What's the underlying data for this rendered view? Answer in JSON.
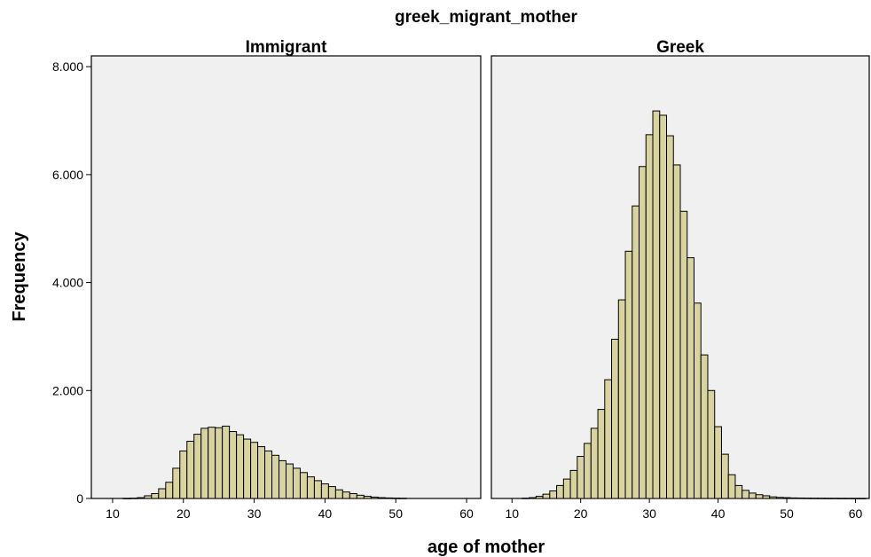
{
  "chart_data": {
    "type": "bar",
    "title": "greek_migrant_mother",
    "xlabel": "age of mother",
    "ylabel": "Frequency",
    "bar_color": "#d8d3a0",
    "plot_bg_color": "#f0f0f0",
    "grid": false,
    "xlim": [
      7,
      62
    ],
    "ylim": [
      0,
      8200
    ],
    "x_ticks": [
      10,
      20,
      30,
      40,
      50,
      60
    ],
    "y_ticks": [
      0,
      2000,
      4000,
      6000,
      8000
    ],
    "y_tick_labels": [
      "0",
      "2.000",
      "4.000",
      "6.000",
      "8.000"
    ],
    "bin_width": 1,
    "panels": [
      {
        "name": "Immigrant",
        "x": [
          12,
          13,
          14,
          15,
          16,
          17,
          18,
          19,
          20,
          21,
          22,
          23,
          24,
          25,
          26,
          27,
          28,
          29,
          30,
          31,
          32,
          33,
          34,
          35,
          36,
          37,
          38,
          39,
          40,
          41,
          42,
          43,
          44,
          45,
          46,
          47,
          48,
          49,
          50,
          51
        ],
        "values": [
          2,
          5,
          15,
          50,
          90,
          180,
          300,
          560,
          880,
          1060,
          1190,
          1300,
          1320,
          1310,
          1340,
          1240,
          1180,
          1100,
          1040,
          960,
          880,
          800,
          700,
          640,
          560,
          480,
          400,
          330,
          270,
          220,
          160,
          120,
          90,
          60,
          40,
          25,
          15,
          10,
          6,
          4
        ]
      },
      {
        "name": "Greek",
        "x": [
          12,
          13,
          14,
          15,
          16,
          17,
          18,
          19,
          20,
          21,
          22,
          23,
          24,
          25,
          26,
          27,
          28,
          29,
          30,
          31,
          32,
          33,
          34,
          35,
          36,
          37,
          38,
          39,
          40,
          41,
          42,
          43,
          44,
          45,
          46,
          47,
          48,
          49,
          50,
          51,
          52,
          53,
          54,
          55,
          56,
          57,
          58,
          59,
          60,
          61
        ],
        "values": [
          5,
          15,
          40,
          80,
          140,
          240,
          360,
          520,
          780,
          1020,
          1300,
          1650,
          2200,
          2950,
          3680,
          4580,
          5420,
          6150,
          6740,
          7180,
          7100,
          6720,
          6180,
          5320,
          4460,
          3620,
          2660,
          2000,
          1330,
          820,
          440,
          240,
          150,
          100,
          70,
          50,
          30,
          20,
          15,
          10,
          8,
          6,
          5,
          4,
          3,
          3,
          2,
          2,
          2,
          1
        ]
      }
    ]
  }
}
